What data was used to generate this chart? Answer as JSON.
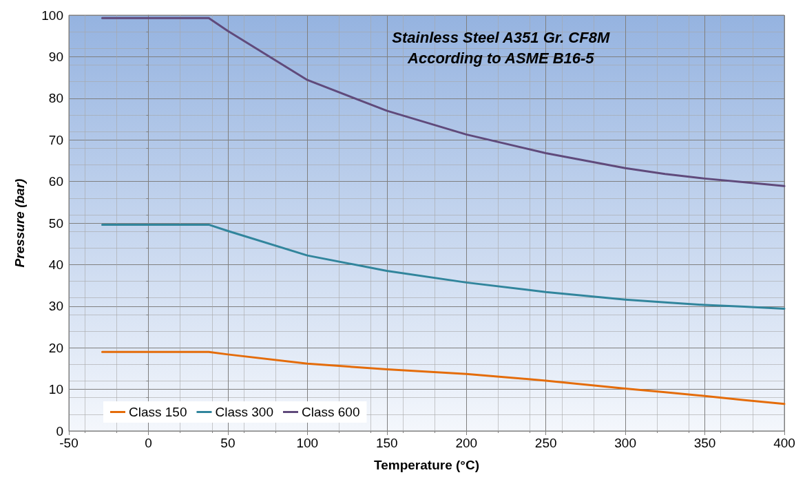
{
  "chart_data": {
    "type": "line",
    "title": "Stainless Steel A351 Gr. CF8M",
    "subtitle": "According to ASME B16-5",
    "xlabel": "Temperature (°C)",
    "ylabel": "Pressure (bar)",
    "x": [
      -29,
      38,
      50,
      100,
      150,
      200,
      250,
      300,
      325,
      350,
      375,
      400
    ],
    "series": [
      {
        "name": "Class 150",
        "color": "#e46c0a",
        "values": [
          19.0,
          19.0,
          18.4,
          16.2,
          14.8,
          13.7,
          12.1,
          10.2,
          9.3,
          8.4,
          7.4,
          6.5
        ]
      },
      {
        "name": "Class 300",
        "color": "#31859c",
        "values": [
          49.6,
          49.6,
          48.1,
          42.2,
          38.5,
          35.7,
          33.4,
          31.6,
          30.9,
          30.3,
          29.9,
          29.4
        ]
      },
      {
        "name": "Class 600",
        "color": "#604a7b",
        "values": [
          99.3,
          99.3,
          96.2,
          84.4,
          77.0,
          71.3,
          66.8,
          63.2,
          61.8,
          60.7,
          59.8,
          58.9
        ]
      }
    ],
    "xlim": [
      -50,
      400
    ],
    "xticks": [
      -50,
      0,
      50,
      100,
      150,
      200,
      250,
      300,
      350,
      400
    ],
    "ylim": [
      0,
      100
    ],
    "yticks": [
      0,
      10,
      20,
      30,
      40,
      50,
      60,
      70,
      80,
      90,
      100
    ],
    "grid": true,
    "legend": "bottom left",
    "marker": "none",
    "line_style": "solid"
  }
}
